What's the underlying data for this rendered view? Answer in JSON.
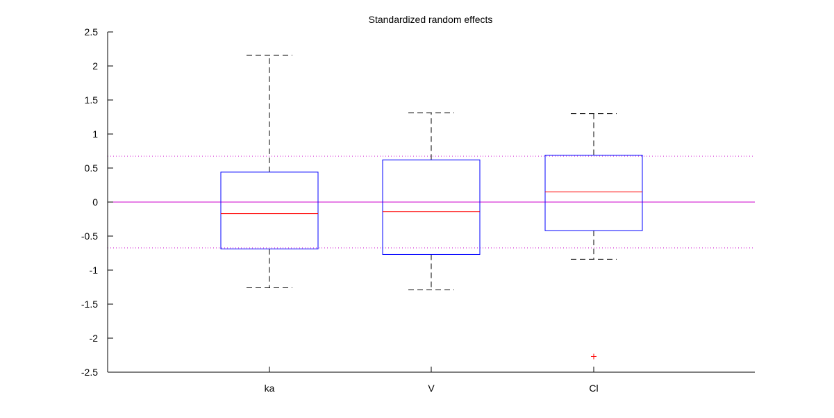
{
  "chart_data": {
    "type": "box",
    "title": "Standardized random effects",
    "xlabel": "",
    "ylabel": "",
    "ylim": [
      -2.5,
      2.5
    ],
    "yticks": [
      "2.5",
      "2",
      "1.5",
      "1",
      "0.5",
      "0",
      "-0.5",
      "-1",
      "-1.5",
      "-2",
      "-2.5"
    ],
    "ytick_values": [
      2.5,
      2,
      1.5,
      1,
      0.5,
      0,
      -0.5,
      -1,
      -1.5,
      -2,
      -2.5
    ],
    "categories": [
      "ka",
      "V",
      "Cl"
    ],
    "boxes": [
      {
        "name": "ka",
        "whisker_low": -1.26,
        "q1": -0.69,
        "median": -0.17,
        "q3": 0.44,
        "whisker_high": 2.16,
        "outliers": []
      },
      {
        "name": "V",
        "whisker_low": -1.29,
        "q1": -0.77,
        "median": -0.14,
        "q3": 0.62,
        "whisker_high": 1.31,
        "outliers": []
      },
      {
        "name": "Cl",
        "whisker_low": -0.84,
        "q1": -0.42,
        "median": 0.15,
        "q3": 0.69,
        "whisker_high": 1.3,
        "outliers": [
          -2.27
        ]
      }
    ],
    "reference_lines": [
      {
        "y": 0,
        "style": "solid"
      },
      {
        "y": 0.674,
        "style": "dotted"
      },
      {
        "y": -0.674,
        "style": "dotted"
      }
    ],
    "grid": false,
    "colors": {
      "box": "#0000ff",
      "median": "#ff0000",
      "whisker": "#000000",
      "outlier": "#ff0000",
      "reference": "#cc00cc"
    }
  }
}
